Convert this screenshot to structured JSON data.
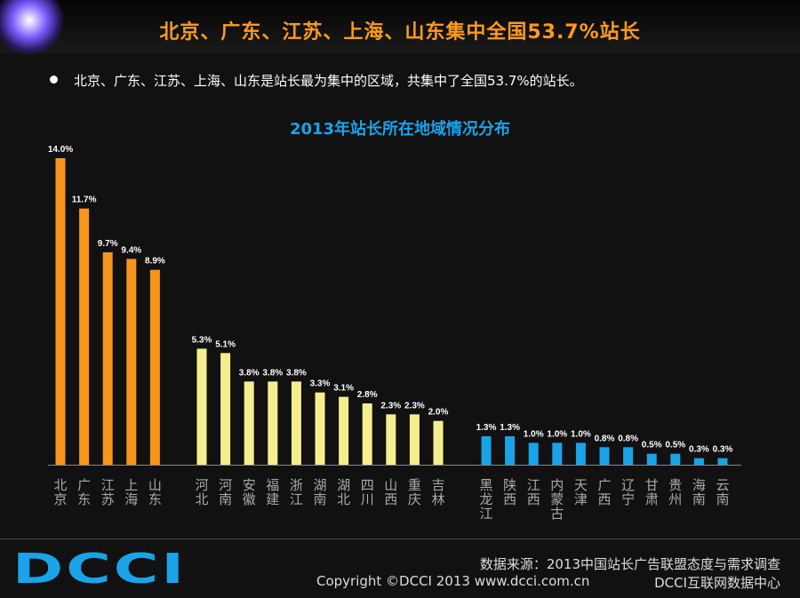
{
  "header": {
    "title": "北京、广东、江苏、上海、山东集中全国53.7%站长"
  },
  "bullet": "北京、广东、江苏、上海、山东是站长最为集中的区域，共集中了全国53.7%的站长。",
  "chart_data": {
    "type": "bar",
    "title": "2013年站长所在地域情况分布",
    "groups": [
      {
        "color": "#f7961d",
        "categories": [
          "北京",
          "广东",
          "江苏",
          "上海",
          "山东"
        ],
        "values": [
          14.0,
          11.7,
          9.7,
          9.4,
          8.9
        ],
        "labels": [
          "14.0%",
          "11.7%",
          "9.7%",
          "9.4%",
          "8.9%"
        ]
      },
      {
        "color": "#f6ee8e",
        "categories": [
          "河北",
          "河南",
          "安徽",
          "福建",
          "浙江",
          "湖南",
          "湖北",
          "四川",
          "山西",
          "重庆",
          "吉林"
        ],
        "values": [
          5.3,
          5.1,
          3.8,
          3.8,
          3.8,
          3.3,
          3.1,
          2.8,
          2.3,
          2.3,
          2.0
        ],
        "labels": [
          "5.3%",
          "5.1%",
          "3.8%",
          "3.8%",
          "3.8%",
          "3.3%",
          "3.1%",
          "2.8%",
          "2.3%",
          "2.3%",
          "2.0%"
        ]
      },
      {
        "color": "#1aa3e8",
        "categories": [
          "黑龙江",
          "陕西",
          "江西",
          "内蒙古",
          "天津",
          "广西",
          "辽宁",
          "甘肃",
          "贵州",
          "海南",
          "云南"
        ],
        "values": [
          1.3,
          1.3,
          1.0,
          1.0,
          1.0,
          0.8,
          0.8,
          0.5,
          0.5,
          0.3,
          0.3
        ],
        "labels": [
          "1.3%",
          "1.3%",
          "1.0%",
          "1.0%",
          "1.0%",
          "0.8%",
          "0.8%",
          "0.5%",
          "0.5%",
          "0.3%",
          "0.3%"
        ]
      }
    ],
    "ylim": [
      0,
      14.0
    ],
    "grid": false,
    "legend": "none"
  },
  "footer": {
    "logo_text": "DCCI",
    "source": "数据来源：2013中国站长广告联盟态度与需求调查",
    "copyright": "Copyright ©DCCI 2013 www.dcci.com.cn",
    "org": "DCCI互联网数据中心"
  }
}
